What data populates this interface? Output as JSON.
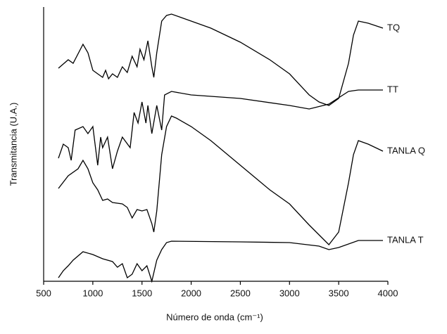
{
  "chart_data": {
    "type": "line",
    "xlabel": "Número de onda  (cm⁻¹)",
    "ylabel": "Transmitancia (U.A.)",
    "xlim": [
      500,
      4000
    ],
    "xticks": [
      500,
      1000,
      1500,
      2000,
      2500,
      3000,
      3500,
      4000
    ],
    "ylim": [
      0,
      390
    ],
    "series": [
      {
        "name": "TQ",
        "color": "#000000",
        "x": [
          650,
          750,
          800,
          900,
          950,
          1000,
          1050,
          1100,
          1130,
          1160,
          1200,
          1250,
          1300,
          1350,
          1400,
          1450,
          1480,
          1520,
          1560,
          1600,
          1620,
          1650,
          1700,
          1750,
          1800,
          1900,
          2000,
          2200,
          2500,
          2800,
          3000,
          3200,
          3300,
          3400,
          3500,
          3600,
          3650,
          3700,
          3800,
          3950
        ],
        "values": [
          303,
          315,
          310,
          337,
          325,
          300,
          295,
          290,
          300,
          288,
          295,
          290,
          305,
          297,
          320,
          305,
          330,
          315,
          342,
          305,
          290,
          325,
          370,
          378,
          380,
          375,
          370,
          360,
          340,
          315,
          295,
          265,
          255,
          250,
          260,
          310,
          350,
          370,
          367,
          360
        ]
      },
      {
        "name": "TT",
        "color": "#000000",
        "x": [
          650,
          700,
          750,
          780,
          820,
          900,
          950,
          1000,
          1050,
          1080,
          1100,
          1150,
          1200,
          1250,
          1300,
          1380,
          1420,
          1460,
          1500,
          1540,
          1560,
          1600,
          1650,
          1700,
          1730,
          1800,
          2000,
          2500,
          3000,
          3200,
          3400,
          3600,
          3700,
          3950
        ],
        "values": [
          175,
          195,
          190,
          172,
          215,
          220,
          210,
          220,
          165,
          205,
          190,
          205,
          160,
          185,
          205,
          190,
          240,
          225,
          255,
          225,
          250,
          210,
          250,
          215,
          265,
          270,
          265,
          260,
          250,
          245,
          252,
          270,
          272,
          272
        ]
      },
      {
        "name": "TANLA Q",
        "color": "#000000",
        "x": [
          650,
          750,
          850,
          900,
          950,
          1000,
          1050,
          1100,
          1150,
          1200,
          1300,
          1350,
          1400,
          1450,
          1500,
          1550,
          1600,
          1620,
          1650,
          1700,
          1750,
          1800,
          1850,
          2000,
          2200,
          2500,
          2800,
          3000,
          3200,
          3400,
          3500,
          3600,
          3650,
          3700,
          3800,
          3950
        ],
        "values": [
          132,
          150,
          160,
          172,
          160,
          140,
          130,
          115,
          117,
          112,
          110,
          105,
          90,
          102,
          100,
          102,
          82,
          70,
          100,
          180,
          220,
          235,
          232,
          220,
          200,
          165,
          130,
          110,
          80,
          52,
          70,
          140,
          180,
          200,
          195,
          185
        ]
      },
      {
        "name": "TANLA T",
        "color": "#000000",
        "x": [
          650,
          700,
          750,
          800,
          900,
          1000,
          1100,
          1200,
          1250,
          1300,
          1350,
          1400,
          1450,
          1500,
          1550,
          1600,
          1650,
          1700,
          1750,
          1800,
          2500,
          3000,
          3300,
          3400,
          3500,
          3700,
          3950
        ],
        "values": [
          5,
          15,
          22,
          30,
          42,
          38,
          32,
          28,
          20,
          25,
          5,
          10,
          25,
          15,
          22,
          0,
          30,
          45,
          55,
          57,
          56,
          55,
          50,
          45,
          48,
          58,
          58
        ]
      }
    ]
  }
}
